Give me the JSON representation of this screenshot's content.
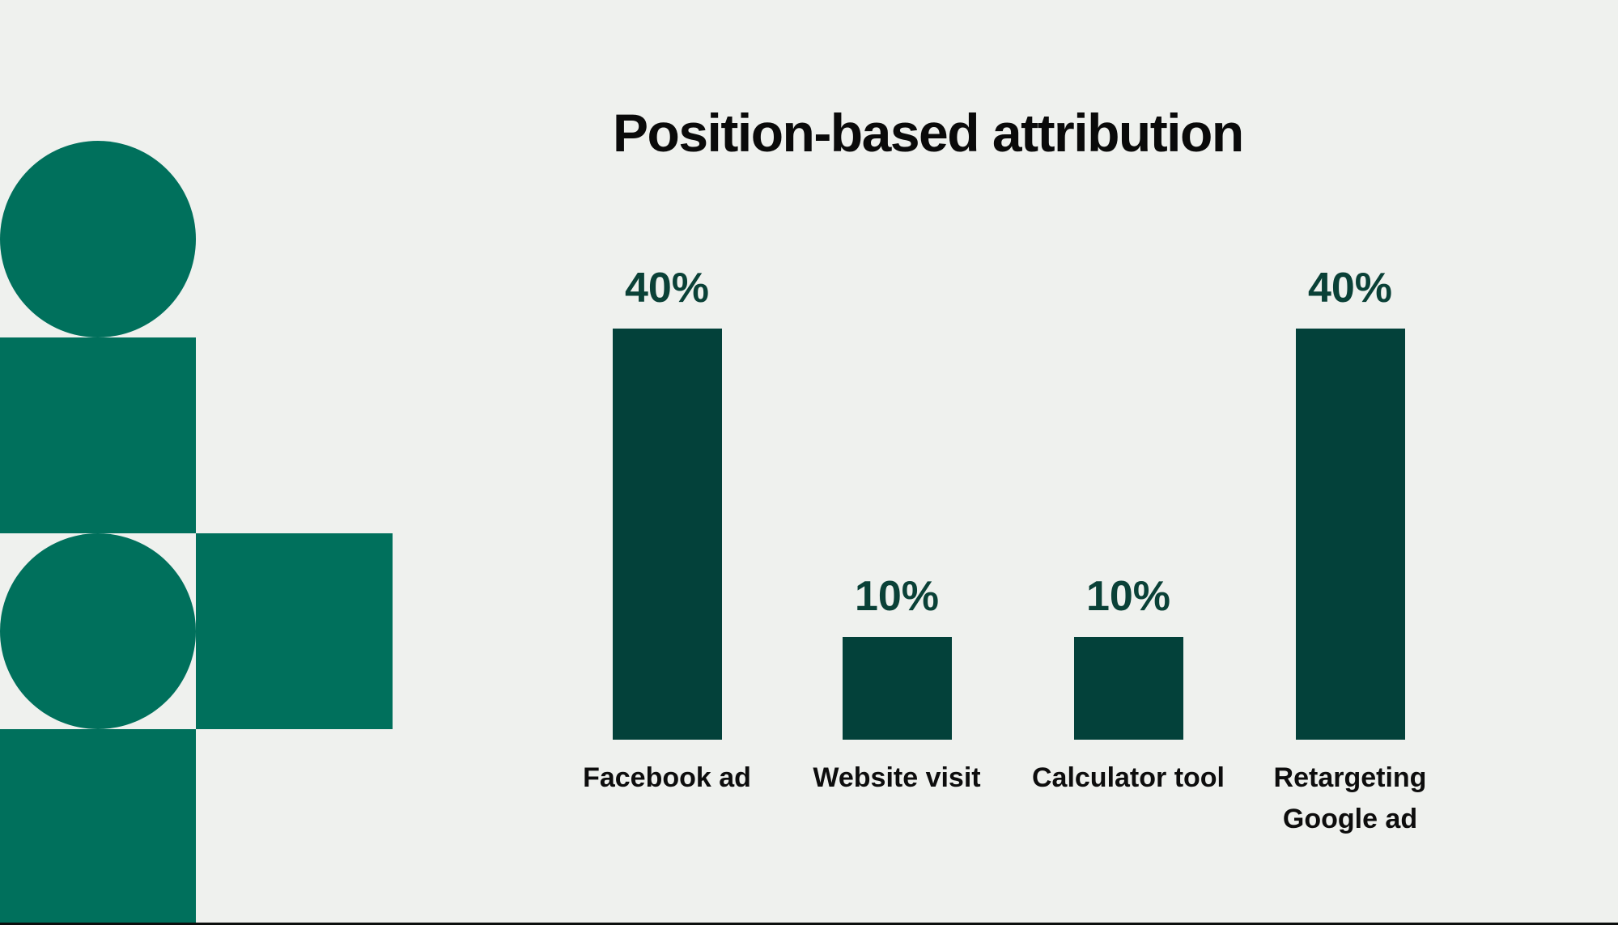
{
  "page": {
    "background": "#eff1ee",
    "bottom_edge_color": "#0c0f0e"
  },
  "decor": {
    "color": "#00705c",
    "shapes": [
      "circle-top",
      "square-middle",
      "circle-bottom",
      "square-right",
      "square-bottom"
    ]
  },
  "chart_data": {
    "type": "bar",
    "title": "Position-based attribution",
    "categories": [
      "Facebook ad",
      "Website visit",
      "Calculator tool",
      "Retargeting\nGoogle ad"
    ],
    "values": [
      40,
      10,
      10,
      40
    ],
    "value_labels": [
      "40%",
      "10%",
      "10%",
      "40%"
    ],
    "unit": "%",
    "ylim": [
      0,
      40
    ],
    "grid": false,
    "axes_hidden": true,
    "legend": "none",
    "bar_color": "#03413a",
    "value_label_color": "#0a4137",
    "category_label_color": "#0d0d0d",
    "title_color": "#0a0a0a"
  }
}
